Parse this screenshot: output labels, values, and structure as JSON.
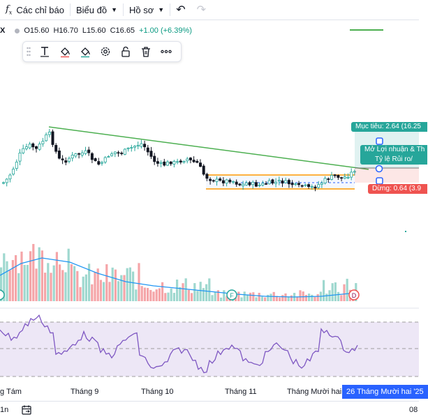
{
  "toolbar": {
    "indicators_label": "Các chỉ báo",
    "chart_type_label": "Biểu đồ",
    "profile_label": "Hồ sơ"
  },
  "legend": {
    "symbol": "X",
    "open": "O15.60",
    "high": "H16.70",
    "low": "L15.60",
    "close": "C16.65",
    "change": "+1.00 (+6.39%)"
  },
  "trade": {
    "target_label": "Mục tiêu: 2.64 (16.25",
    "stop_label": "Dừng: 0.64 (3.9",
    "info_line1": "Mở Lợi nhuận & Th",
    "info_line2": "Tỷ lệ Rủi ro/"
  },
  "markers": {
    "f_marker": "F",
    "d_marker": "D"
  },
  "xaxis": {
    "labels": [
      "g Tám",
      "Tháng 9",
      "Tháng 10",
      "Tháng 11",
      "Tháng Mười hai"
    ],
    "highlight": "26 Tháng Mười hai '25"
  },
  "bottom": {
    "interval": "1n",
    "right_text": "08"
  },
  "colors": {
    "up": "#26a69a",
    "down": "#ef5350",
    "trendline": "#4caf50",
    "range": "#ff9800",
    "rsi": "#7e57c2",
    "ma": "#2196f3",
    "highlight": "#2962ff"
  }
}
